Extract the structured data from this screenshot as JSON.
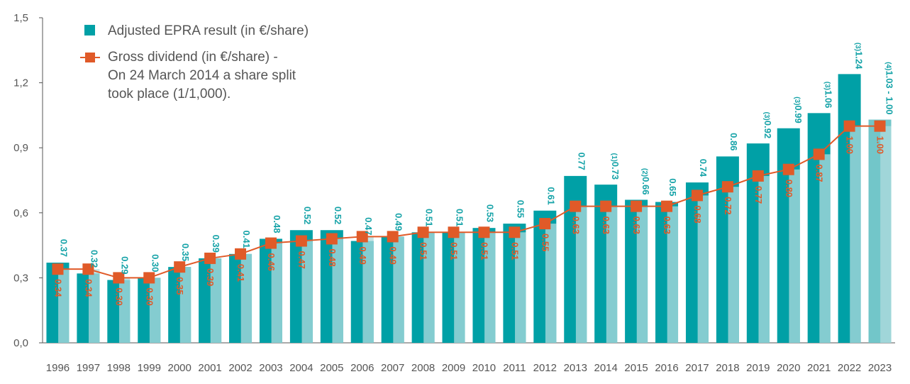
{
  "chart_data": {
    "type": "bar",
    "categories": [
      "1996",
      "1997",
      "1998",
      "1999",
      "2000",
      "2001",
      "2002",
      "2003",
      "2004",
      "2005",
      "2006",
      "2007",
      "2008",
      "2009",
      "2010",
      "2011",
      "2012",
      "2013",
      "2014",
      "2015",
      "2016",
      "2017",
      "2018",
      "2019",
      "2020",
      "2021",
      "2022",
      "2023"
    ],
    "ylim": [
      0,
      1.5
    ],
    "yticks": [
      "0,0",
      "0,3",
      "0,6",
      "0,9",
      "1,2",
      "1,5"
    ],
    "series": [
      {
        "name": "Adjusted EPRA result (in €/share)",
        "kind": "bar",
        "values": [
          0.37,
          0.32,
          0.29,
          0.3,
          0.35,
          0.39,
          0.41,
          0.48,
          0.52,
          0.52,
          0.47,
          0.49,
          0.51,
          0.51,
          0.53,
          0.55,
          0.61,
          0.77,
          0.73,
          0.66,
          0.65,
          0.74,
          0.86,
          0.92,
          0.99,
          1.06,
          1.24,
          1.03
        ],
        "labels": [
          "0.37",
          "0.32",
          "0.29",
          "0.30",
          "0.35",
          "0.39",
          "0.41",
          "0.48",
          "0.52",
          "0.52",
          "0.47",
          "0.49",
          "0.51",
          "0.51",
          "0.53",
          "0.55",
          "0.61",
          "0.77",
          "0.73",
          "0.66",
          "0.65",
          "0.74",
          "0.86",
          "0.92",
          "0.99",
          "1.06",
          "1.24",
          "1.03 - 1.00"
        ],
        "footnotes": [
          "",
          "",
          "",
          "",
          "",
          "",
          "",
          "",
          "",
          "",
          "",
          "",
          "",
          "",
          "",
          "",
          "",
          "",
          "(1)",
          "(2)",
          "",
          "",
          "",
          "(3)",
          "(3)",
          "(3)",
          "(3)",
          "(4)"
        ]
      },
      {
        "name": "Gross dividend (in €/share) -",
        "kind": "line",
        "values": [
          0.34,
          0.34,
          0.3,
          0.3,
          0.35,
          0.39,
          0.41,
          0.46,
          0.47,
          0.48,
          0.49,
          0.49,
          0.51,
          0.51,
          0.51,
          0.51,
          0.55,
          0.63,
          0.63,
          0.63,
          0.63,
          0.68,
          0.72,
          0.77,
          0.8,
          0.87,
          1.0,
          1.0
        ],
        "labels": [
          "0.34",
          "0.34",
          "0.30",
          "0.30",
          "0.35",
          "0.39",
          "0.41",
          "0.46",
          "0.47",
          "0.48",
          "0.49",
          "0.49",
          "0.51",
          "0.51",
          "0.51",
          "0.51",
          "0.55",
          "0.63",
          "0.63",
          "0.63",
          "0.63",
          "0.68",
          "0.72",
          "0.77",
          "0.80",
          "0.87",
          "1.00",
          "1.00"
        ]
      }
    ],
    "legend_note": [
      "On 24 March 2014 a share split",
      "took place (1/1,000)."
    ],
    "legend_position": "top-left",
    "colors": {
      "bar": "#00a0a6",
      "bar_last": "#72c6c9",
      "bar_shadow": "#b0dbdd",
      "line": "#e05a28",
      "axis": "#555555"
    }
  }
}
